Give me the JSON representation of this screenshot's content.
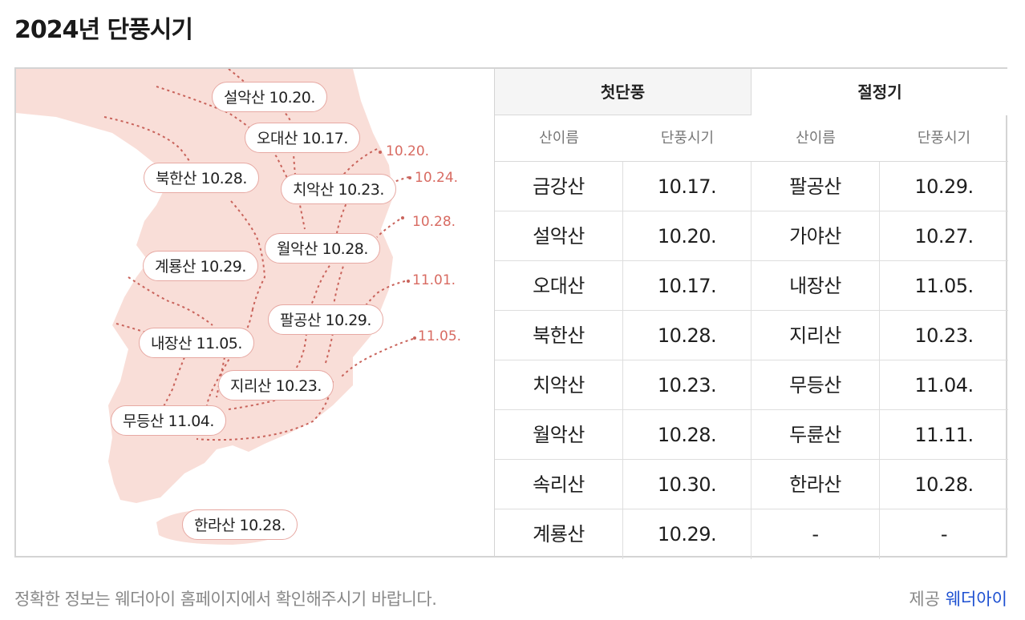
{
  "title": "2024년 단풍시기",
  "map": {
    "labels": [
      {
        "name": "설악산",
        "date": "10.20."
      },
      {
        "name": "오대산",
        "date": "10.17."
      },
      {
        "name": "북한산",
        "date": "10.28."
      },
      {
        "name": "치악산",
        "date": "10.23."
      },
      {
        "name": "월악산",
        "date": "10.28."
      },
      {
        "name": "계룡산",
        "date": "10.29."
      },
      {
        "name": "팔공산",
        "date": "10.29."
      },
      {
        "name": "내장산",
        "date": "11.05."
      },
      {
        "name": "지리산",
        "date": "10.23."
      },
      {
        "name": "무등산",
        "date": "11.04."
      },
      {
        "name": "한라산",
        "date": "10.28."
      }
    ],
    "isoline_labels": [
      "10.20.",
      "10.24.",
      "10.28.",
      "11.01.",
      "11.05."
    ],
    "land_color": "#f9ded8",
    "line_color": "#c9635b"
  },
  "table": {
    "tabs": [
      "첫단풍",
      "절정기"
    ],
    "headers": [
      "산이름",
      "단풍시기",
      "산이름",
      "단풍시기"
    ],
    "rows": [
      [
        "금강산",
        "10.17.",
        "팔공산",
        "10.29."
      ],
      [
        "설악산",
        "10.20.",
        "가야산",
        "10.27."
      ],
      [
        "오대산",
        "10.17.",
        "내장산",
        "11.05."
      ],
      [
        "북한산",
        "10.28.",
        "지리산",
        "10.23."
      ],
      [
        "치악산",
        "10.23.",
        "무등산",
        "11.04."
      ],
      [
        "월악산",
        "10.28.",
        "두륜산",
        "11.11."
      ],
      [
        "속리산",
        "10.30.",
        "한라산",
        "10.28."
      ],
      [
        "계룡산",
        "10.29.",
        "-",
        "-"
      ]
    ]
  },
  "footer": {
    "notice": "정확한 정보는 웨더아이 홈페이지에서 확인해주시기 바랍니다.",
    "provider_prefix": "제공",
    "provider_name": "웨더아이"
  }
}
